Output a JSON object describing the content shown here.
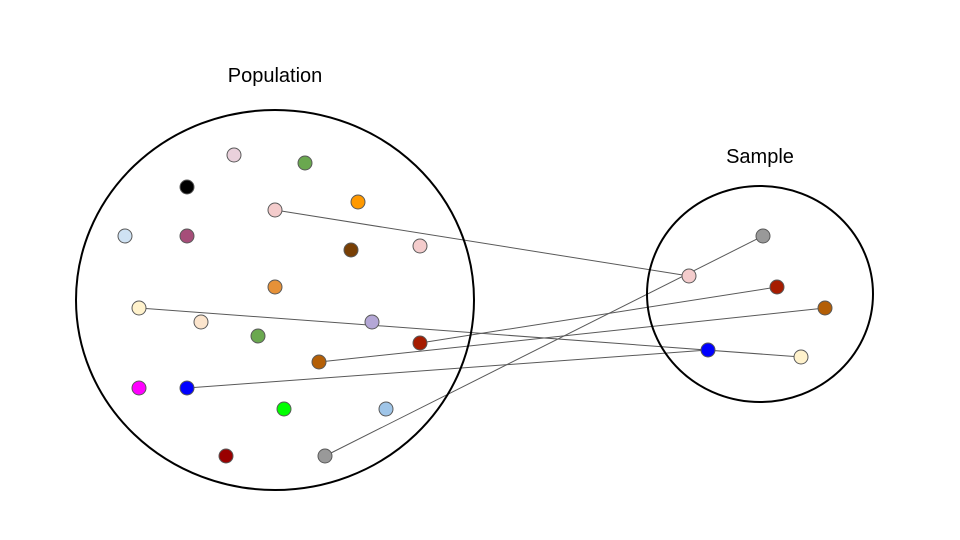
{
  "labels": {
    "population": "Population",
    "sample": "Sample"
  },
  "colors": {
    "outline": "#000000",
    "dot_stroke": "#595959",
    "connector": "#595959"
  },
  "population_dots": [
    {
      "name": "light-pink"
    },
    {
      "name": "green"
    },
    {
      "name": "black"
    },
    {
      "name": "pink"
    },
    {
      "name": "orange"
    },
    {
      "name": "light-blue"
    },
    {
      "name": "mauve"
    },
    {
      "name": "brown"
    },
    {
      "name": "pink"
    },
    {
      "name": "orange"
    },
    {
      "name": "cream"
    },
    {
      "name": "peach"
    },
    {
      "name": "green"
    },
    {
      "name": "lavender"
    },
    {
      "name": "red"
    },
    {
      "name": "burnt-orange"
    },
    {
      "name": "magenta"
    },
    {
      "name": "blue"
    },
    {
      "name": "bright-green"
    },
    {
      "name": "light-blue"
    },
    {
      "name": "dark-red"
    },
    {
      "name": "gray"
    }
  ],
  "sample_dots": [
    {
      "name": "pink"
    },
    {
      "name": "gray"
    },
    {
      "name": "red"
    },
    {
      "name": "burnt-orange"
    },
    {
      "name": "blue"
    },
    {
      "name": "cream"
    }
  ]
}
